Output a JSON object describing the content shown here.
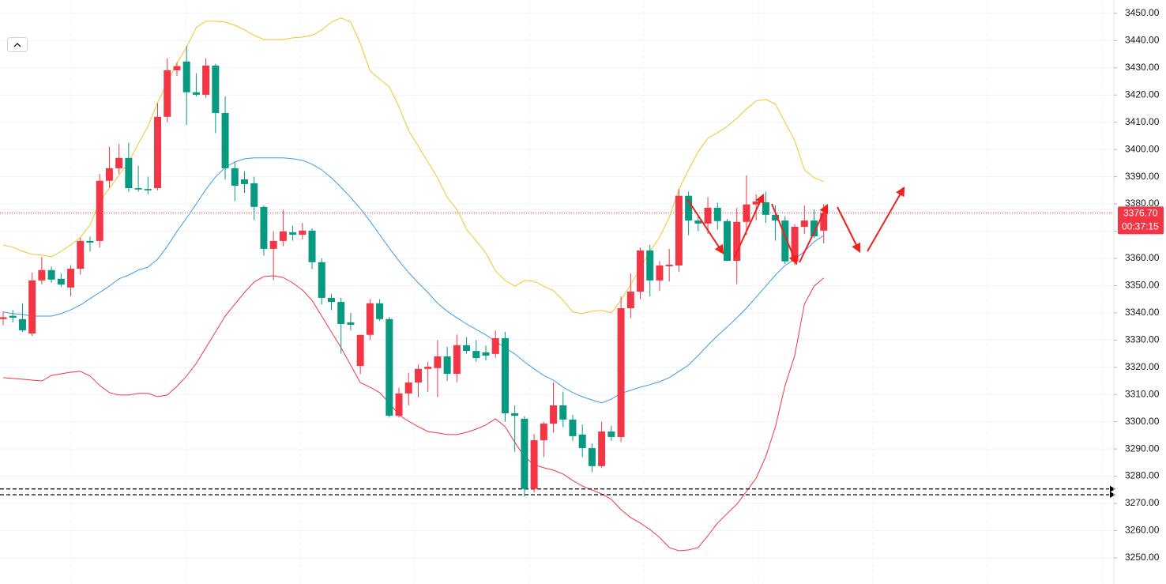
{
  "chart_data": {
    "type": "candlestick",
    "ylim": [
      3240.4,
      3454.9
    ],
    "yticks": [
      {
        "value": 3250,
        "label": "3250.00"
      },
      {
        "value": 3260,
        "label": "3260.00"
      },
      {
        "value": 3270,
        "label": "3270.00"
      },
      {
        "value": 3280,
        "label": "3280.00"
      },
      {
        "value": 3290,
        "label": "3290.00"
      },
      {
        "value": 3300,
        "label": "3300.00"
      },
      {
        "value": 3310,
        "label": "3310.00"
      },
      {
        "value": 3320,
        "label": "3320.00"
      },
      {
        "value": 3330,
        "label": "3330.00"
      },
      {
        "value": 3340,
        "label": "3340.00"
      },
      {
        "value": 3350,
        "label": "3350.00"
      },
      {
        "value": 3360,
        "label": "3360.00"
      },
      {
        "value": 3370,
        "label": "3370.00"
      },
      {
        "value": 3380,
        "label": "3380.00"
      },
      {
        "value": 3390,
        "label": "3390.00"
      },
      {
        "value": 3400,
        "label": "3400.00"
      },
      {
        "value": 3410,
        "label": "3410.00"
      },
      {
        "value": 3420,
        "label": "3420.00"
      },
      {
        "value": 3430,
        "label": "3430.00"
      },
      {
        "value": 3440,
        "label": "3440.00"
      },
      {
        "value": 3450,
        "label": "3450.00"
      }
    ],
    "grid": true,
    "up_color": "#f23645",
    "down_color": "#089981",
    "candles": [
      [
        3337.7,
        3340.5,
        3335.5,
        3338.4
      ],
      [
        3338.9,
        3341,
        3336.5,
        3338.2
      ],
      [
        3337.7,
        3343.5,
        3333,
        3333.6
      ],
      [
        3332.4,
        3354.8,
        3331.5,
        3351.9
      ],
      [
        3351.9,
        3360.5,
        3350.5,
        3355.7
      ],
      [
        3355.7,
        3357,
        3351,
        3352.2
      ],
      [
        3352.5,
        3354.5,
        3349.5,
        3350.4
      ],
      [
        3349.3,
        3357.5,
        3346,
        3356.2
      ],
      [
        3356.2,
        3367.5,
        3354,
        3366.4
      ],
      [
        3366.4,
        3368,
        3362.5,
        3365.8
      ],
      [
        3366.4,
        3391,
        3364,
        3388.5
      ],
      [
        3388.5,
        3401,
        3386,
        3393.1
      ],
      [
        3393.1,
        3402,
        3391,
        3396.9
      ],
      [
        3396.9,
        3402.5,
        3384.5,
        3385.8
      ],
      [
        3385.8,
        3394,
        3384.5,
        3385.3
      ],
      [
        3385.5,
        3390,
        3383.5,
        3385
      ],
      [
        3385.8,
        3417,
        3385,
        3412
      ],
      [
        3412,
        3433.5,
        3410,
        3429.1
      ],
      [
        3429.1,
        3432,
        3427,
        3430.6
      ],
      [
        3432.3,
        3438,
        3409,
        3421
      ],
      [
        3421,
        3428,
        3419.5,
        3420.1
      ],
      [
        3420.1,
        3433.5,
        3419,
        3430.8
      ],
      [
        3430.8,
        3431.5,
        3406,
        3413.4
      ],
      [
        3413.4,
        3419.5,
        3389,
        3393.1
      ],
      [
        3393.1,
        3395.5,
        3381,
        3386.7
      ],
      [
        3389,
        3392,
        3384,
        3387.3
      ],
      [
        3387.6,
        3390,
        3374,
        3378.9
      ],
      [
        3378.9,
        3379.5,
        3361,
        3363.5
      ],
      [
        3363.5,
        3370,
        3352,
        3366.4
      ],
      [
        3366.4,
        3378,
        3364.5,
        3369.9
      ],
      [
        3369.6,
        3372,
        3366.5,
        3368.7
      ],
      [
        3368.7,
        3373,
        3367,
        3370.2
      ],
      [
        3370.2,
        3371,
        3356,
        3358.6
      ],
      [
        3358.6,
        3360,
        3343,
        3345.5
      ],
      [
        3345.5,
        3347,
        3341,
        3344
      ],
      [
        3344,
        3345.5,
        3325,
        3335.9
      ],
      [
        3336.5,
        3340,
        3333.5,
        3335.6
      ],
      [
        3320.5,
        3331.5,
        3317.5,
        3331.9
      ],
      [
        3331.9,
        3345,
        3330,
        3343.5
      ],
      [
        3343.5,
        3345,
        3337,
        3337.7
      ],
      [
        3337.7,
        3338.5,
        3301.5,
        3302.2
      ],
      [
        3302.2,
        3312.5,
        3301.5,
        3310.4
      ],
      [
        3310.4,
        3318,
        3306,
        3314.4
      ],
      [
        3314.4,
        3321,
        3309,
        3319.4
      ],
      [
        3319.4,
        3322,
        3311,
        3320.2
      ],
      [
        3319.7,
        3330,
        3309,
        3324
      ],
      [
        3324,
        3327.5,
        3315,
        3317.6
      ],
      [
        3317.6,
        3332,
        3314.5,
        3328.1
      ],
      [
        3328.1,
        3331,
        3325,
        3326
      ],
      [
        3326,
        3330,
        3322,
        3323.4
      ],
      [
        3325.5,
        3328,
        3322.5,
        3324.3
      ],
      [
        3324.9,
        3333.5,
        3323.5,
        3330.7
      ],
      [
        3330.7,
        3333,
        3300,
        3303.1
      ],
      [
        3303.1,
        3306,
        3289,
        3302.2
      ],
      [
        3301.1,
        3302,
        3272.5,
        3275.3
      ],
      [
        3275.3,
        3295.5,
        3274,
        3293.2
      ],
      [
        3293.2,
        3300,
        3287,
        3299.3
      ],
      [
        3299.3,
        3314.5,
        3296,
        3306
      ],
      [
        3306,
        3311,
        3298,
        3300.8
      ],
      [
        3300.8,
        3302.5,
        3293,
        3294.7
      ],
      [
        3295.3,
        3299,
        3287,
        3290.3
      ],
      [
        3290.3,
        3292,
        3281.5,
        3283.7
      ],
      [
        3283.7,
        3300,
        3283,
        3296.4
      ],
      [
        3296.4,
        3298.5,
        3293,
        3294.4
      ],
      [
        3294.4,
        3346,
        3292.5,
        3341.7
      ],
      [
        3341.7,
        3354.5,
        3338,
        3347.8
      ],
      [
        3347.8,
        3364,
        3345,
        3362.9
      ],
      [
        3362.9,
        3365,
        3346,
        3351.9
      ],
      [
        3351.9,
        3359,
        3348,
        3357.4
      ],
      [
        3357.1,
        3363.5,
        3351.5,
        3357.7
      ],
      [
        3357.4,
        3385.5,
        3355,
        3383
      ],
      [
        3383,
        3384.5,
        3368.5,
        3373.9
      ],
      [
        3373.9,
        3376,
        3370,
        3372.8
      ],
      [
        3372.8,
        3382.5,
        3369,
        3378.6
      ],
      [
        3378.6,
        3380.5,
        3370.5,
        3373.7
      ],
      [
        3373.7,
        3374.5,
        3359,
        3359.1
      ],
      [
        3359.1,
        3378.5,
        3350.5,
        3373.4
      ],
      [
        3373.4,
        3390.5,
        3368.5,
        3379.8
      ],
      [
        3379.8,
        3383.5,
        3374,
        3380.9
      ],
      [
        3380.6,
        3384.5,
        3373,
        3376
      ],
      [
        3376,
        3379.5,
        3366.5,
        3373.9
      ],
      [
        3373.9,
        3375.5,
        3358,
        3358.9
      ],
      [
        3358.9,
        3372.5,
        3357.5,
        3371.6
      ],
      [
        3371.6,
        3379.5,
        3369,
        3373.9
      ],
      [
        3373.9,
        3378,
        3367.5,
        3368.1
      ],
      [
        3370.2,
        3380,
        3365.5,
        3376.7
      ]
    ],
    "series": [
      {
        "color": "#f7c325",
        "values": [
          3364.9,
          3364.1,
          3362.6,
          3361.5,
          3361.2,
          3360.6,
          3362.6,
          3364.9,
          3367.8,
          3372.2,
          3380.9,
          3385.8,
          3390.5,
          3395.4,
          3402.1,
          3408.5,
          3417.2,
          3424.5,
          3431.7,
          3437.5,
          3444.8,
          3447.1,
          3447.1,
          3446.8,
          3445.6,
          3443.9,
          3441.9,
          3440.4,
          3440.4,
          3440.4,
          3441,
          3441.3,
          3441.9,
          3443.9,
          3446.8,
          3448.3,
          3446.8,
          3439,
          3428.8,
          3425.9,
          3423,
          3415.7,
          3407,
          3401.2,
          3395.4,
          3389.6,
          3382.4,
          3378,
          3370.7,
          3366.4,
          3362,
          3355.4,
          3351.9,
          3349.8,
          3351.9,
          3351.6,
          3349.8,
          3348.1,
          3344.6,
          3340.3,
          3339.7,
          3340.6,
          3340.9,
          3340,
          3344.6,
          3350.4,
          3356.2,
          3362.6,
          3367.8,
          3375.1,
          3385.3,
          3392.5,
          3399.2,
          3404.1,
          3406.2,
          3408.5,
          3411.4,
          3414.9,
          3417.8,
          3418.4,
          3416.6,
          3409.9,
          3403.3,
          3392.5,
          3389.6,
          3388.2
        ]
      },
      {
        "color": "#3d9be9",
        "values": [
          3340.3,
          3339.7,
          3339.4,
          3338.8,
          3338.8,
          3338.8,
          3339.7,
          3341.1,
          3342.9,
          3345.2,
          3347.5,
          3349.8,
          3352.5,
          3353.9,
          3355.7,
          3356.8,
          3359.7,
          3364.4,
          3369.9,
          3374.8,
          3380,
          3385.3,
          3389.9,
          3393.4,
          3395.4,
          3396.6,
          3396.9,
          3396.9,
          3396.9,
          3396.9,
          3396.6,
          3396,
          3394.6,
          3392.5,
          3389.6,
          3386.1,
          3382.4,
          3378.3,
          3373.7,
          3368.7,
          3363.8,
          3359.1,
          3354.8,
          3351,
          3347.5,
          3343.5,
          3340.6,
          3338.2,
          3335.9,
          3333.9,
          3331.9,
          3329.5,
          3327.2,
          3324.9,
          3322,
          3319.4,
          3317,
          3315.3,
          3312.7,
          3310.7,
          3309.2,
          3308,
          3306.9,
          3308.3,
          3310.4,
          3311.5,
          3312.7,
          3313.6,
          3314.7,
          3316.2,
          3318.5,
          3320.8,
          3324.3,
          3328.1,
          3331.6,
          3334.8,
          3338.2,
          3341.7,
          3345.8,
          3349.8,
          3353.9,
          3357.4,
          3359.7,
          3362.6,
          3366.1,
          3368.4
        ]
      },
      {
        "color": "#f23645",
        "values": [
          3316.2,
          3315.9,
          3315.6,
          3315.3,
          3315,
          3317,
          3317.6,
          3318.2,
          3318.5,
          3316.8,
          3313.3,
          3310.7,
          3309.8,
          3309.8,
          3310.4,
          3310.4,
          3309.2,
          3309.8,
          3313,
          3316.8,
          3321.4,
          3327.2,
          3333,
          3338.8,
          3343.2,
          3347.5,
          3351.3,
          3353.3,
          3353.6,
          3353,
          3351,
          3348.4,
          3344.6,
          3338.8,
          3333,
          3327.2,
          3320.8,
          3314.4,
          3312.7,
          3310.7,
          3306.9,
          3302.5,
          3300.2,
          3298.2,
          3296.4,
          3295.9,
          3295.3,
          3295.3,
          3296.1,
          3297.3,
          3298.8,
          3301.1,
          3298.2,
          3292.4,
          3287.2,
          3284.2,
          3283.1,
          3282.2,
          3280.8,
          3278.4,
          3276.4,
          3274.9,
          3273.5,
          3271.5,
          3267.7,
          3264.8,
          3262.8,
          3260.4,
          3257.5,
          3253.8,
          3252.6,
          3252.9,
          3253.8,
          3258.1,
          3262.8,
          3266.3,
          3269.7,
          3274.4,
          3279.3,
          3287.2,
          3298.2,
          3313.3,
          3324.3,
          3343.2,
          3349.8,
          3352.8
        ]
      }
    ],
    "levels": [
      3275.3,
      3273.2
    ],
    "last_price": {
      "value": 3376.7,
      "label": "3376.70"
    },
    "countdown": "00:37:15"
  }
}
